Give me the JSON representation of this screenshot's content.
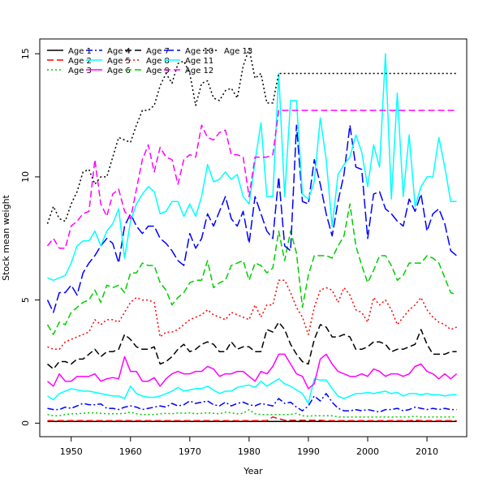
{
  "chart_data": {
    "type": "line",
    "xlabel": "Year",
    "ylabel": "Stock mean weight",
    "xlim": [
      1944.7,
      2016.7
    ],
    "ylim": [
      -0.55,
      15.6
    ],
    "x_ticks": [
      1950,
      1960,
      1970,
      1980,
      1990,
      2000,
      2010
    ],
    "y_ticks": [
      0,
      5,
      10,
      15
    ],
    "grid": false,
    "legend_position": "top-left",
    "legend_columns": 6,
    "x": [
      1946,
      1947,
      1948,
      1949,
      1950,
      1951,
      1952,
      1953,
      1954,
      1955,
      1956,
      1957,
      1958,
      1959,
      1960,
      1961,
      1962,
      1963,
      1964,
      1965,
      1966,
      1967,
      1968,
      1969,
      1970,
      1971,
      1972,
      1973,
      1974,
      1975,
      1976,
      1977,
      1978,
      1979,
      1980,
      1981,
      1982,
      1983,
      1984,
      1985,
      1986,
      1987,
      1988,
      1989,
      1990,
      1991,
      1992,
      1993,
      1994,
      1995,
      1996,
      1997,
      1998,
      1999,
      2000,
      2001,
      2002,
      2003,
      2004,
      2005,
      2006,
      2007,
      2008,
      2009,
      2010,
      2011,
      2012,
      2013,
      2014,
      2015
    ],
    "series": [
      {
        "name": "Age 1",
        "color": "#000000",
        "dash": "solid",
        "values": [
          0.07,
          0.07,
          0.07,
          0.07,
          0.07,
          0.07,
          0.07,
          0.07,
          0.07,
          0.07,
          0.07,
          0.07,
          0.07,
          0.07,
          0.07,
          0.07,
          0.07,
          0.07,
          0.07,
          0.07,
          0.07,
          0.07,
          0.07,
          0.07,
          0.07,
          0.07,
          0.07,
          0.07,
          0.07,
          0.07,
          0.07,
          0.07,
          0.07,
          0.07,
          0.07,
          0.07,
          0.07,
          0.07,
          0.07,
          0.07,
          0.07,
          0.07,
          0.07,
          0.07,
          0.07,
          0.07,
          0.07,
          0.07,
          0.07,
          0.07,
          0.07,
          0.07,
          0.07,
          0.07,
          0.07,
          0.07,
          0.07,
          0.07,
          0.07,
          0.07,
          0.07,
          0.07,
          0.07,
          0.07,
          0.07,
          0.07,
          0.07,
          0.07,
          0.07,
          0.07
        ]
      },
      {
        "name": "Age 2",
        "color": "#ff0000",
        "dash": "dashed",
        "values": [
          0.1,
          0.1,
          0.1,
          0.1,
          0.1,
          0.1,
          0.1,
          0.1,
          0.1,
          0.1,
          0.1,
          0.1,
          0.1,
          0.1,
          0.1,
          0.1,
          0.1,
          0.1,
          0.1,
          0.1,
          0.1,
          0.1,
          0.1,
          0.1,
          0.1,
          0.1,
          0.1,
          0.1,
          0.1,
          0.1,
          0.1,
          0.1,
          0.1,
          0.1,
          0.1,
          0.1,
          0.1,
          0.1,
          0.25,
          0.18,
          0.12,
          0.12,
          0.12,
          0.12,
          0.12,
          0.12,
          0.12,
          0.1,
          0.1,
          0.1,
          0.1,
          0.1,
          0.1,
          0.1,
          0.1,
          0.1,
          0.1,
          0.1,
          0.1,
          0.1,
          0.1,
          0.1,
          0.12,
          0.1,
          0.1,
          0.1,
          0.1,
          0.1,
          0.1,
          0.1
        ]
      },
      {
        "name": "Age 3",
        "color": "#00cd00",
        "dash": "dotted",
        "values": [
          0.35,
          0.3,
          0.3,
          0.35,
          0.38,
          0.38,
          0.4,
          0.42,
          0.42,
          0.4,
          0.38,
          0.38,
          0.38,
          0.4,
          0.45,
          0.38,
          0.35,
          0.35,
          0.35,
          0.38,
          0.4,
          0.38,
          0.42,
          0.4,
          0.42,
          0.38,
          0.4,
          0.42,
          0.4,
          0.38,
          0.45,
          0.42,
          0.38,
          0.4,
          0.55,
          0.38,
          0.35,
          0.35,
          0.35,
          0.35,
          0.35,
          0.35,
          0.4,
          0.3,
          0.28,
          0.3,
          0.3,
          0.3,
          0.3,
          0.25,
          0.25,
          0.25,
          0.25,
          0.25,
          0.25,
          0.25,
          0.25,
          0.25,
          0.25,
          0.25,
          0.25,
          0.25,
          0.28,
          0.25,
          0.25,
          0.25,
          0.25,
          0.25,
          0.25,
          0.25
        ]
      },
      {
        "name": "Age 4",
        "color": "#0000ff",
        "dash": "dashdot",
        "values": [
          0.6,
          0.55,
          0.55,
          0.65,
          0.6,
          0.7,
          0.8,
          0.75,
          0.75,
          0.78,
          0.6,
          0.6,
          0.55,
          0.65,
          0.7,
          0.65,
          0.55,
          0.6,
          0.65,
          0.7,
          0.65,
          0.8,
          0.7,
          0.75,
          0.9,
          0.8,
          0.85,
          0.9,
          0.75,
          0.7,
          0.85,
          0.7,
          0.8,
          0.85,
          0.75,
          0.7,
          0.8,
          0.75,
          0.7,
          1.0,
          0.8,
          0.85,
          0.65,
          0.5,
          0.7,
          1.1,
          0.9,
          1.2,
          0.85,
          0.6,
          0.5,
          0.5,
          0.55,
          0.5,
          0.55,
          0.5,
          0.45,
          0.55,
          0.55,
          0.6,
          0.5,
          0.55,
          0.65,
          0.6,
          0.55,
          0.6,
          0.55,
          0.6,
          0.55,
          0.55
        ]
      },
      {
        "name": "Age 5",
        "color": "#00ffff",
        "dash": "solid",
        "values": [
          1.1,
          0.95,
          1.2,
          1.3,
          1.4,
          1.35,
          1.3,
          1.3,
          1.25,
          1.2,
          1.15,
          1.1,
          1.1,
          1.0,
          1.5,
          1.2,
          1.1,
          1.05,
          1.05,
          1.1,
          1.2,
          1.3,
          1.45,
          1.3,
          1.35,
          1.4,
          1.4,
          1.5,
          1.35,
          1.2,
          1.3,
          1.3,
          1.45,
          1.5,
          1.55,
          1.45,
          1.7,
          1.5,
          1.65,
          1.8,
          1.6,
          1.5,
          1.35,
          1.2,
          0.8,
          1.8,
          1.75,
          1.75,
          1.4,
          1.1,
          1.0,
          1.1,
          1.2,
          1.2,
          1.25,
          1.2,
          1.25,
          1.3,
          1.2,
          1.25,
          1.1,
          1.2,
          1.2,
          1.15,
          1.2,
          1.15,
          1.15,
          1.1,
          1.15,
          1.15
        ]
      },
      {
        "name": "Age 6",
        "color": "#ff00ff",
        "dash": "solid",
        "values": [
          1.7,
          1.5,
          2.0,
          1.7,
          1.7,
          1.9,
          1.9,
          1.9,
          2.0,
          1.7,
          1.8,
          1.85,
          1.8,
          2.7,
          2.1,
          2.1,
          1.7,
          1.7,
          1.85,
          1.5,
          1.8,
          2.0,
          2.1,
          2.0,
          2.0,
          2.1,
          2.1,
          2.3,
          2.2,
          1.9,
          2.0,
          2.0,
          2.1,
          2.1,
          1.9,
          1.7,
          2.1,
          2.0,
          2.3,
          2.8,
          2.8,
          2.4,
          2.0,
          1.9,
          1.4,
          1.6,
          2.6,
          2.8,
          2.4,
          2.1,
          2.0,
          1.9,
          1.9,
          2.0,
          1.9,
          2.2,
          2.1,
          1.9,
          2.0,
          2.0,
          1.9,
          2.0,
          2.3,
          2.4,
          2.1,
          2.0,
          1.8,
          2.0,
          1.8,
          2.0
        ]
      },
      {
        "name": "Age 7",
        "color": "#000000",
        "dash": "dashed",
        "values": [
          2.4,
          2.2,
          2.5,
          2.5,
          2.4,
          2.6,
          2.6,
          2.8,
          3.0,
          2.7,
          2.9,
          2.9,
          3.0,
          3.6,
          3.4,
          3.1,
          3.0,
          3.0,
          3.1,
          2.4,
          2.5,
          2.7,
          3.0,
          3.2,
          2.9,
          3.0,
          3.2,
          3.3,
          3.2,
          2.9,
          2.9,
          3.3,
          3.0,
          3.1,
          3.1,
          2.9,
          2.9,
          3.8,
          3.7,
          4.1,
          3.8,
          3.2,
          2.8,
          2.5,
          2.4,
          3.4,
          4.0,
          3.9,
          3.5,
          3.5,
          3.6,
          3.5,
          3.0,
          3.0,
          3.1,
          3.3,
          3.3,
          3.2,
          2.9,
          3.0,
          3.0,
          3.1,
          3.2,
          3.8,
          3.2,
          2.8,
          2.8,
          2.8,
          2.9,
          2.9
        ]
      },
      {
        "name": "Age 8",
        "color": "#ff0000",
        "dash": "dotted",
        "values": [
          3.1,
          3.0,
          3.0,
          3.3,
          3.4,
          3.5,
          3.6,
          3.7,
          4.2,
          4.0,
          4.2,
          4.2,
          4.1,
          4.5,
          4.9,
          5.1,
          5.0,
          5.0,
          4.9,
          3.5,
          3.7,
          3.7,
          3.8,
          4.0,
          4.2,
          4.3,
          4.4,
          4.6,
          4.4,
          4.3,
          4.2,
          4.5,
          4.4,
          4.3,
          4.2,
          4.8,
          4.3,
          4.8,
          4.8,
          5.8,
          5.8,
          5.3,
          4.7,
          4.3,
          3.6,
          4.7,
          5.4,
          5.5,
          5.4,
          4.9,
          5.5,
          5.2,
          4.6,
          4.5,
          4.1,
          5.1,
          4.8,
          5.0,
          4.6,
          4.0,
          4.3,
          4.6,
          4.8,
          5.1,
          4.6,
          4.3,
          4.1,
          4.0,
          3.8,
          3.9
        ]
      },
      {
        "name": "Age 9",
        "color": "#00cd00",
        "dash": "dashed",
        "values": [
          4.0,
          3.6,
          4.1,
          4.0,
          4.5,
          4.7,
          4.9,
          5.0,
          5.4,
          4.9,
          5.6,
          5.5,
          5.6,
          5.3,
          6.1,
          6.1,
          6.5,
          6.4,
          6.4,
          5.7,
          5.4,
          4.8,
          5.1,
          5.3,
          5.7,
          5.8,
          5.8,
          6.6,
          5.5,
          5.7,
          5.8,
          6.4,
          6.5,
          6.6,
          5.8,
          6.5,
          6.4,
          6.1,
          6.3,
          7.8,
          6.6,
          7.8,
          6.9,
          4.7,
          6.0,
          6.8,
          6.8,
          6.8,
          6.7,
          7.2,
          7.6,
          8.9,
          7.2,
          6.4,
          5.7,
          6.2,
          6.8,
          6.8,
          6.4,
          5.8,
          6.0,
          6.5,
          6.5,
          6.5,
          6.8,
          6.7,
          6.5,
          5.9,
          5.3,
          5.2
        ]
      },
      {
        "name": "Age 10",
        "color": "#0000ff",
        "dash": "longdash",
        "values": [
          5.0,
          4.5,
          5.3,
          5.3,
          5.6,
          5.2,
          6.1,
          6.5,
          6.8,
          7.2,
          7.5,
          7.3,
          6.5,
          8.0,
          8.5,
          8.0,
          7.7,
          8.0,
          8.0,
          7.5,
          7.3,
          7.0,
          6.6,
          6.4,
          7.7,
          7.1,
          7.5,
          8.5,
          8.0,
          8.6,
          9.2,
          8.3,
          8.0,
          8.6,
          7.3,
          9.2,
          8.5,
          7.8,
          7.5,
          10.0,
          7.2,
          7.0,
          12.1,
          9.0,
          8.9,
          10.7,
          9.7,
          8.5,
          7.6,
          9.0,
          10.1,
          12.1,
          10.4,
          10.3,
          7.5,
          9.3,
          9.4,
          8.7,
          8.5,
          8.2,
          8.0,
          9.1,
          8.6,
          9.3,
          7.8,
          8.5,
          8.7,
          8.1,
          7.0,
          6.8
        ]
      },
      {
        "name": "Age 11",
        "color": "#00ffff",
        "dash": "solid",
        "values": [
          5.9,
          5.8,
          5.9,
          6.0,
          6.5,
          7.2,
          7.4,
          7.4,
          7.8,
          7.2,
          7.8,
          8.1,
          8.7,
          6.7,
          8.2,
          8.9,
          9.3,
          9.6,
          9.4,
          8.5,
          8.6,
          9.0,
          9.0,
          8.4,
          8.9,
          8.4,
          9.2,
          10.5,
          9.8,
          9.9,
          10.2,
          9.9,
          10.1,
          9.2,
          8.9,
          10.6,
          12.2,
          9.2,
          9.2,
          14.2,
          9.2,
          13.1,
          13.1,
          9.3,
          9.1,
          9.8,
          12.4,
          10.7,
          8.0,
          10.1,
          10.5,
          10.8,
          11.7,
          11.0,
          9.6,
          11.3,
          10.4,
          15.0,
          9.1,
          13.4,
          9.2,
          11.7,
          8.8,
          9.6,
          10.0,
          10.0,
          11.6,
          10.4,
          9.0,
          9.0
        ]
      },
      {
        "name": "Age 12",
        "color": "#ff00ff",
        "dash": "dashed",
        "values": [
          7.2,
          7.5,
          7.1,
          7.1,
          8.0,
          8.2,
          8.5,
          8.6,
          10.7,
          8.9,
          8.4,
          9.3,
          9.5,
          8.6,
          8.3,
          9.5,
          10.7,
          11.3,
          10.2,
          11.2,
          10.8,
          10.7,
          9.7,
          10.7,
          10.9,
          10.8,
          12.1,
          11.6,
          11.5,
          11.8,
          11.9,
          10.9,
          10.9,
          10.8,
          9.2,
          10.8,
          10.8,
          10.8,
          10.9,
          12.7,
          12.7,
          12.7,
          12.7,
          12.7,
          12.7,
          12.7,
          12.7,
          12.7,
          12.7,
          12.7,
          12.7,
          12.7,
          12.7,
          12.7,
          12.7,
          12.7,
          12.7,
          12.7,
          12.7,
          12.7,
          12.7,
          12.7,
          12.7,
          12.7,
          12.7,
          12.7,
          12.7,
          12.7,
          12.7,
          12.7
        ]
      },
      {
        "name": "Age 13",
        "color": "#000000",
        "dash": "dotted",
        "values": [
          8.1,
          8.8,
          8.3,
          8.2,
          8.9,
          9.4,
          10.2,
          10.3,
          9.7,
          10.0,
          10.0,
          10.8,
          11.6,
          11.5,
          11.4,
          12.1,
          12.7,
          12.7,
          12.9,
          13.7,
          14.2,
          13.8,
          14.6,
          14.7,
          14.2,
          12.9,
          13.8,
          13.9,
          13.2,
          13.1,
          13.5,
          13.6,
          13.2,
          14.5,
          15.2,
          14.0,
          14.2,
          13.0,
          13.0,
          14.2,
          14.2,
          14.2,
          14.2,
          14.2,
          14.2,
          14.2,
          14.2,
          14.2,
          14.2,
          14.2,
          14.2,
          14.2,
          14.2,
          14.2,
          14.2,
          14.2,
          14.2,
          14.2,
          14.2,
          14.2,
          14.2,
          14.2,
          14.2,
          14.2,
          14.2,
          14.2,
          14.2,
          14.2,
          14.2,
          14.2
        ]
      }
    ]
  }
}
